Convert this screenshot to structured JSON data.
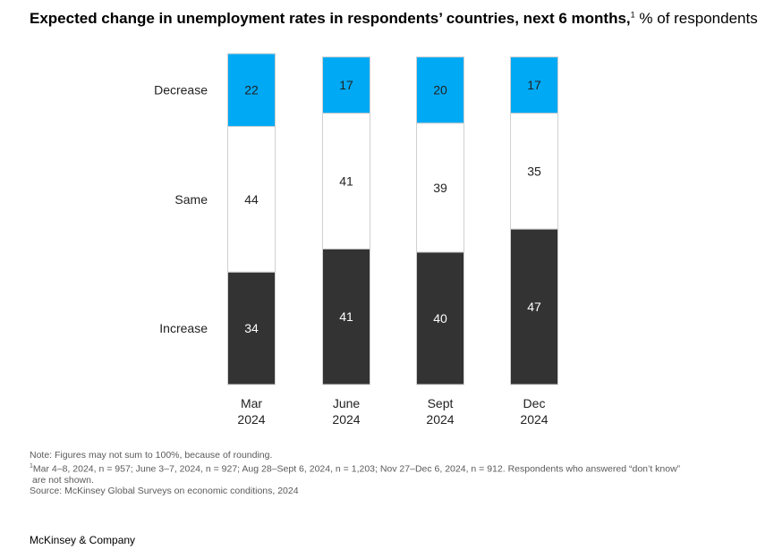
{
  "title": {
    "main": "Expected change in unemployment rates in respondents’ countries, next 6 months,",
    "footnote_mark": "1",
    "unit": " % of respondents"
  },
  "chart_data": {
    "type": "bar",
    "stacked": true,
    "orientation": "vertical",
    "categories": [
      [
        "Mar",
        "2024"
      ],
      [
        "June",
        "2024"
      ],
      [
        "Sept",
        "2024"
      ],
      [
        "Dec",
        "2024"
      ]
    ],
    "series": [
      {
        "name": "Increase",
        "values": [
          34,
          41,
          40,
          47
        ],
        "color": "#333333",
        "label_color": "#ffffff"
      },
      {
        "name": "Same",
        "values": [
          44,
          41,
          39,
          35
        ],
        "color": "#ffffff",
        "label_color": "#222222"
      },
      {
        "name": "Decrease",
        "values": [
          22,
          17,
          20,
          17
        ],
        "color": "#00a9f4",
        "label_color": "#222222"
      }
    ],
    "ylim": [
      0,
      100
    ],
    "grid": false,
    "legend": "left"
  },
  "notes": {
    "note": "Note: Figures may not sum to 100%, because of rounding.",
    "footnote_mark": "1",
    "footnote_line1": "Mar 4–8, 2024, n = 957; June 3–7, 2024, n = 927; Aug 28–Sept 6, 2024, n = 1,203; Nov 27–Dec 6, 2024, n = 912. Respondents who answered “don’t know”",
    "footnote_line2": "are not shown.",
    "source": "Source: McKinsey Global Surveys on economic conditions, 2024"
  },
  "brand": "McKinsey & Company"
}
